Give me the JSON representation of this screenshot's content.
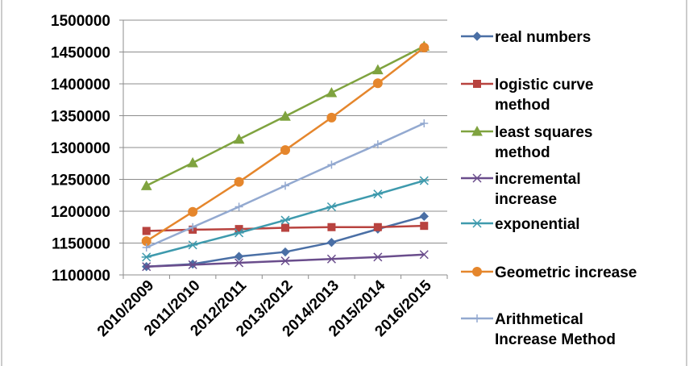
{
  "chart_data": {
    "type": "line",
    "title": "",
    "xlabel": "",
    "ylabel": "",
    "categories": [
      "2010/2009",
      "2011/2010",
      "2012/2011",
      "2013/2012",
      "2014/2013",
      "2015/2014",
      "2016/2015"
    ],
    "ylim": [
      1100000,
      1500000
    ],
    "yticks": [
      1100000,
      1150000,
      1200000,
      1250000,
      1300000,
      1350000,
      1400000,
      1450000,
      1500000
    ],
    "grid": true,
    "legend_position": "right",
    "series": [
      {
        "name": "real numbers",
        "color": "#4a6fa5",
        "marker": "diamond",
        "values": [
          1113000,
          1117000,
          1129000,
          1136000,
          1151000,
          1172000,
          1192000
        ]
      },
      {
        "name": "logistic curve method",
        "legend_lines": [
          "logistic curve",
          "method"
        ],
        "color": "#b8433f",
        "marker": "square",
        "values": [
          1169000,
          1171000,
          1172000,
          1174000,
          1175000,
          1175000,
          1177000
        ]
      },
      {
        "name": "least squares method",
        "legend_lines": [
          "least squares",
          "method"
        ],
        "color": "#7fa33f",
        "marker": "triangle",
        "values": [
          1240000,
          1276000,
          1313000,
          1349000,
          1386000,
          1422000,
          1459000
        ]
      },
      {
        "name": "incremental increase",
        "legend_lines": [
          "incremental",
          "increase"
        ],
        "color": "#6a4d8c",
        "marker": "x",
        "values": [
          1113000,
          1116000,
          1119000,
          1122000,
          1125000,
          1128000,
          1132000
        ]
      },
      {
        "name": "exponential",
        "color": "#3e9aad",
        "marker": "asterisk",
        "values": [
          1128000,
          1147000,
          1166000,
          1186000,
          1207000,
          1227000,
          1248000
        ]
      },
      {
        "name": "Geometric increase",
        "color": "#e5862c",
        "marker": "circle",
        "values": [
          1153000,
          1199000,
          1246000,
          1296000,
          1347000,
          1401000,
          1457000
        ]
      },
      {
        "name": "Arithmetical Increase Method",
        "legend_lines": [
          "Arithmetical",
          "Increase Method"
        ],
        "color": "#93a9d0",
        "marker": "plus",
        "values": [
          1143000,
          1175000,
          1207000,
          1240000,
          1273000,
          1305000,
          1338000
        ]
      }
    ]
  }
}
